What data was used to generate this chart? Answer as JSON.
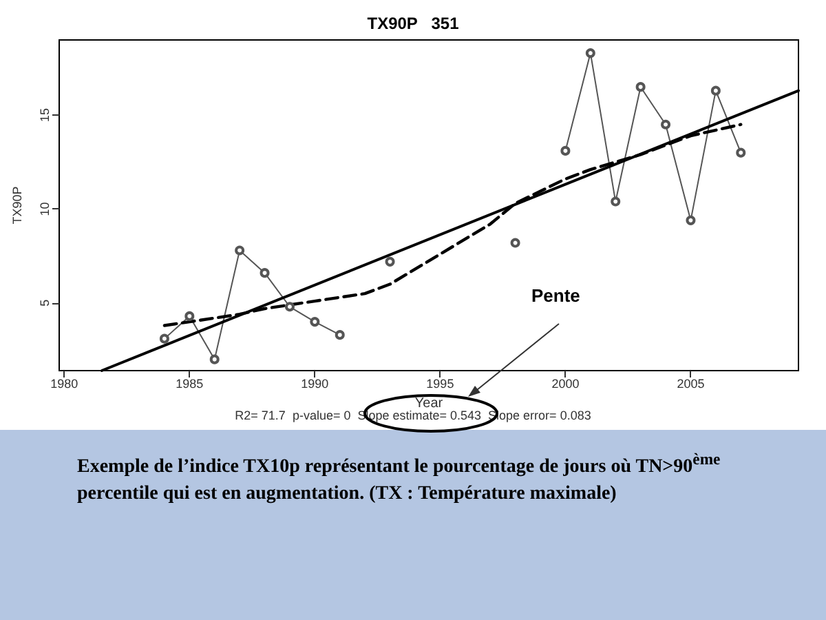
{
  "chart_data": {
    "type": "line",
    "title": "TX90P   351",
    "xlabel": "Year",
    "ylabel": "TX90P",
    "annotations": [
      "Pente",
      "R2= 71.7  p-value= 0  Slope estimate= 0.543  Slope error= 0.083",
      "Exemple de l’indice TX10p représentant le pourcentage de jours où TN>90$^{ème}$ percentile qui est en augmentation. (TX : Température maximale)"
    ],
    "xlim": [
      1979.8,
      2009.3
    ],
    "ylim": [
      1.4,
      19
    ],
    "xticks": [
      1980,
      1985,
      1990,
      1995,
      2000,
      2005
    ],
    "yticks": [
      5,
      10,
      15
    ],
    "series": [
      {
        "color": "#555555",
        "marker": "circle",
        "line_style": "solid",
        "x": [
          1984,
          1985,
          1986,
          1987,
          1988,
          1989,
          1990,
          1991,
          1992,
          1993,
          1994,
          1995,
          1996,
          1997,
          1998,
          1999,
          2000,
          2001,
          2002,
          2003,
          2004,
          2005,
          2006,
          2007
        ],
        "values": [
          3.1,
          4.3,
          2.0,
          7.8,
          6.6,
          4.8,
          4.0,
          3.3,
          null,
          7.2,
          null,
          null,
          null,
          null,
          8.2,
          null,
          13.1,
          18.3,
          10.4,
          16.5,
          14.5,
          9.4,
          16.3,
          13.0
        ]
      },
      {
        "color": "#000000",
        "marker": "none",
        "line_style": "solid",
        "x": [
          1981.5,
          2009.3
        ],
        "values": [
          1.4,
          16.3
        ]
      },
      {
        "color": "#000000",
        "marker": "none",
        "line_style": "dashed",
        "x": [
          1984,
          1985,
          1987,
          1988,
          1989,
          1990,
          1992,
          1993,
          1995,
          1997,
          1998,
          2000,
          2001,
          2003,
          2005,
          2007
        ],
        "values": [
          3.8,
          4.0,
          4.4,
          4.7,
          4.9,
          5.1,
          5.5,
          6.0,
          7.6,
          9.2,
          10.3,
          11.6,
          12.1,
          12.9,
          13.9,
          14.5
        ]
      }
    ]
  }
}
